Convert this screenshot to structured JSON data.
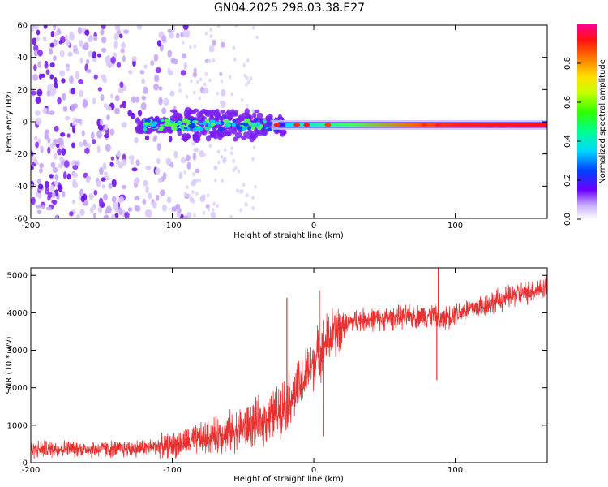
{
  "title": "GN04.2025.298.03.38.E27",
  "colors": {
    "snr_line": "#e83030",
    "frame": "#000000"
  },
  "chart_data": [
    {
      "type": "heatmap",
      "name": "spectrogram",
      "xlabel": "Height of straight line (km)",
      "ylabel": "Frequency (Hz)",
      "xlim": [
        -200,
        165
      ],
      "ylim": [
        -60,
        60
      ],
      "xticks": [
        "-200",
        "-100",
        "0",
        "100"
      ],
      "xtick_values": [
        -200,
        -100,
        0,
        100
      ],
      "yticks": [
        "-60",
        "-40",
        "-20",
        "0",
        "20",
        "40",
        "60"
      ],
      "ytick_values": [
        -60,
        -40,
        -20,
        0,
        20,
        40,
        60
      ],
      "colorbar": {
        "label": "Normalized spectral amplitude",
        "range": [
          0,
          1
        ],
        "ticks": [
          "0.0",
          "0.2",
          "0.4",
          "0.6",
          "0.8"
        ],
        "tick_values": [
          0.0,
          0.2,
          0.4,
          0.6,
          0.8
        ]
      },
      "features": [
        {
          "name": "noise",
          "x_from": -200,
          "x_to": -70,
          "amplitude": 0.15
        },
        {
          "name": "signal-band",
          "x_from": -125,
          "x_to": 165,
          "frequency": -2,
          "amplitude_start": 0.2,
          "amplitude_end": 0.95
        }
      ]
    },
    {
      "type": "line",
      "name": "snr",
      "xlabel": "Height of straight line (km)",
      "ylabel": "SNR (10 * v/v)",
      "xlim": [
        -200,
        165
      ],
      "ylim": [
        0,
        5200
      ],
      "xticks": [
        "-200",
        "-100",
        "0",
        "100"
      ],
      "xtick_values": [
        -200,
        -100,
        0,
        100
      ],
      "yticks": [
        "0",
        "1000",
        "2000",
        "3000",
        "4000",
        "5000"
      ],
      "ytick_values": [
        0,
        1000,
        2000,
        3000,
        4000,
        5000
      ],
      "series": [
        {
          "name": "SNR",
          "x": [
            -200,
            -180,
            -160,
            -140,
            -120,
            -100,
            -80,
            -60,
            -40,
            -30,
            -20,
            -10,
            0,
            5,
            10,
            20,
            30,
            50,
            70,
            85,
            90,
            100,
            120,
            140,
            165
          ],
          "y": [
            350,
            380,
            360,
            360,
            400,
            470,
            620,
            830,
            1050,
            1250,
            1600,
            2000,
            2700,
            3000,
            3300,
            3650,
            3800,
            3850,
            3900,
            3950,
            3800,
            4000,
            4200,
            4450,
            4700
          ]
        }
      ],
      "spikes": [
        {
          "x": -19,
          "y": 4400
        },
        {
          "x": 4,
          "y": 4600
        },
        {
          "x": 7,
          "y": 700
        },
        {
          "x": 88,
          "y": 5200
        },
        {
          "x": 87,
          "y": 2200
        }
      ]
    }
  ]
}
